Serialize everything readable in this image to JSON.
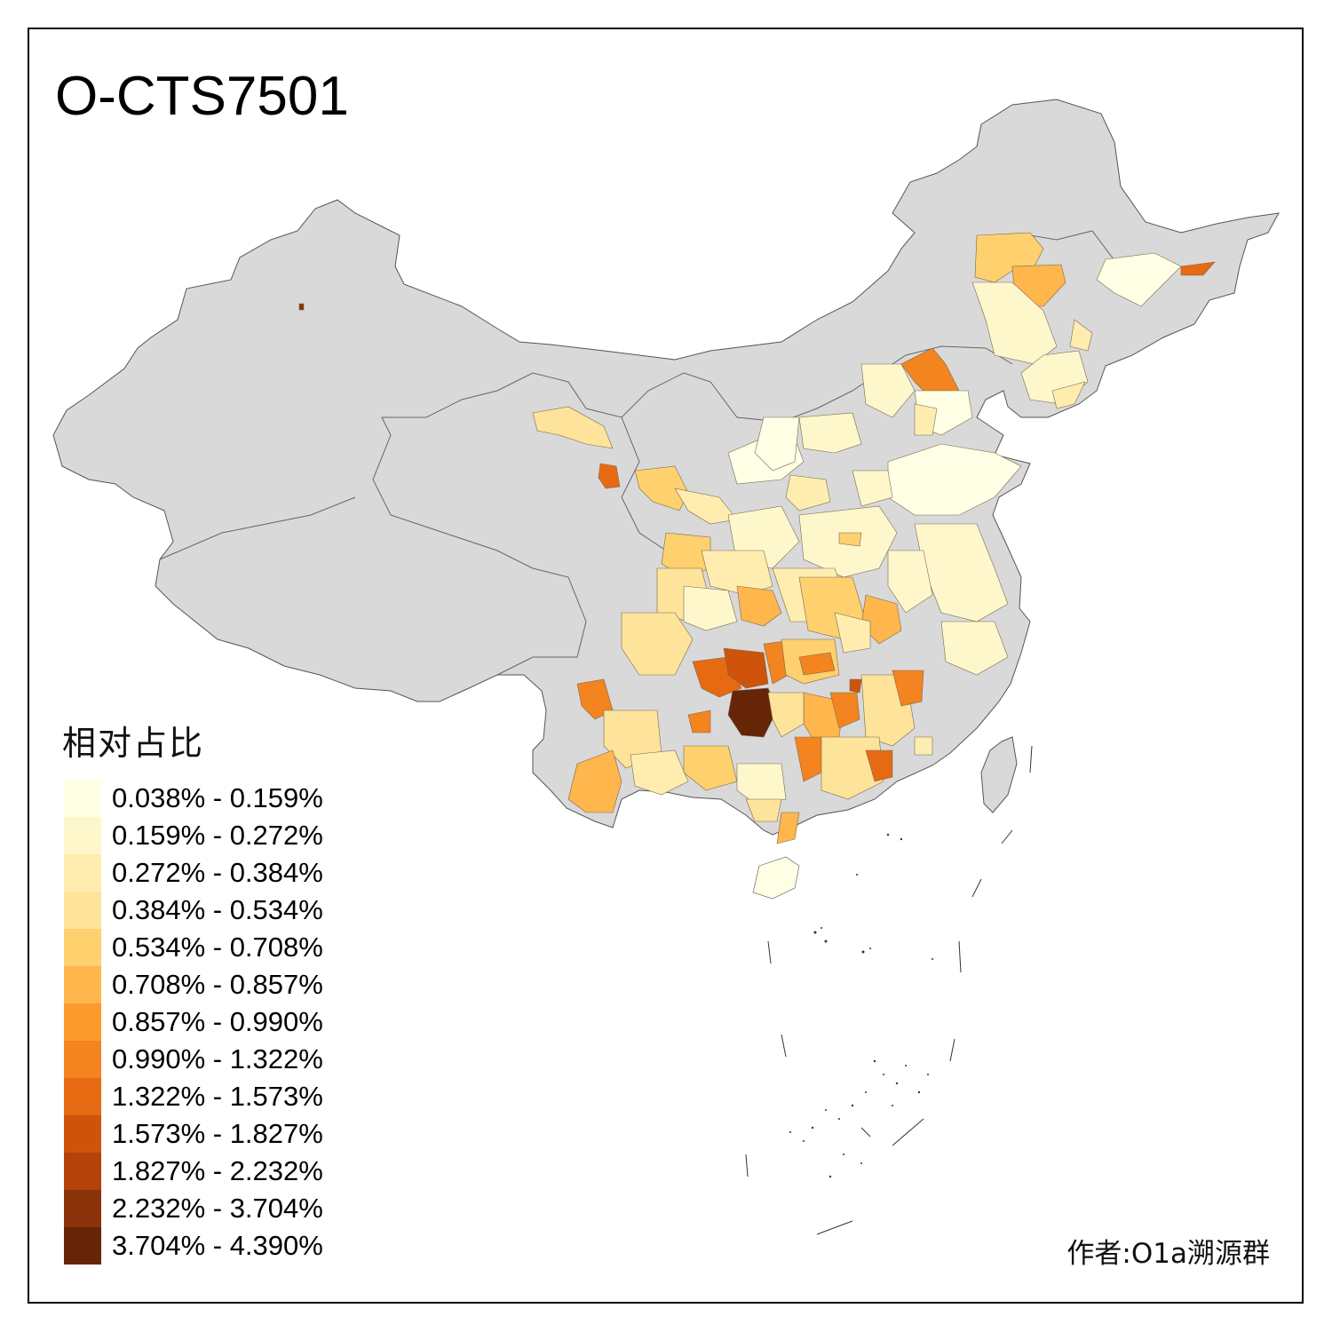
{
  "title": "O-CTS7501",
  "legend": {
    "title": "相对占比",
    "items": [
      {
        "label": "0.038% - 0.159%",
        "color": "#FFFFE5"
      },
      {
        "label": "0.159% - 0.272%",
        "color": "#FFF7CC"
      },
      {
        "label": "0.272% - 0.384%",
        "color": "#FFEDB0"
      },
      {
        "label": "0.384% - 0.534%",
        "color": "#FEE39A"
      },
      {
        "label": "0.534% - 0.708%",
        "color": "#FED06E"
      },
      {
        "label": "0.708% - 0.857%",
        "color": "#FEB64D"
      },
      {
        "label": "0.857% - 0.990%",
        "color": "#FD9A2E"
      },
      {
        "label": "0.990% - 1.322%",
        "color": "#F3841F"
      },
      {
        "label": "1.322% - 1.573%",
        "color": "#E66A12"
      },
      {
        "label": "1.573% - 1.827%",
        "color": "#CF530A"
      },
      {
        "label": "1.827% - 2.232%",
        "color": "#B3430A"
      },
      {
        "label": "2.232% - 3.704%",
        "color": "#8C320A"
      },
      {
        "label": "3.704% - 4.390%",
        "color": "#662506"
      }
    ]
  },
  "author": "作者:O1a溯源群",
  "map": {
    "no_data_color": "#D9D9D9",
    "border_color": "#555555"
  }
}
